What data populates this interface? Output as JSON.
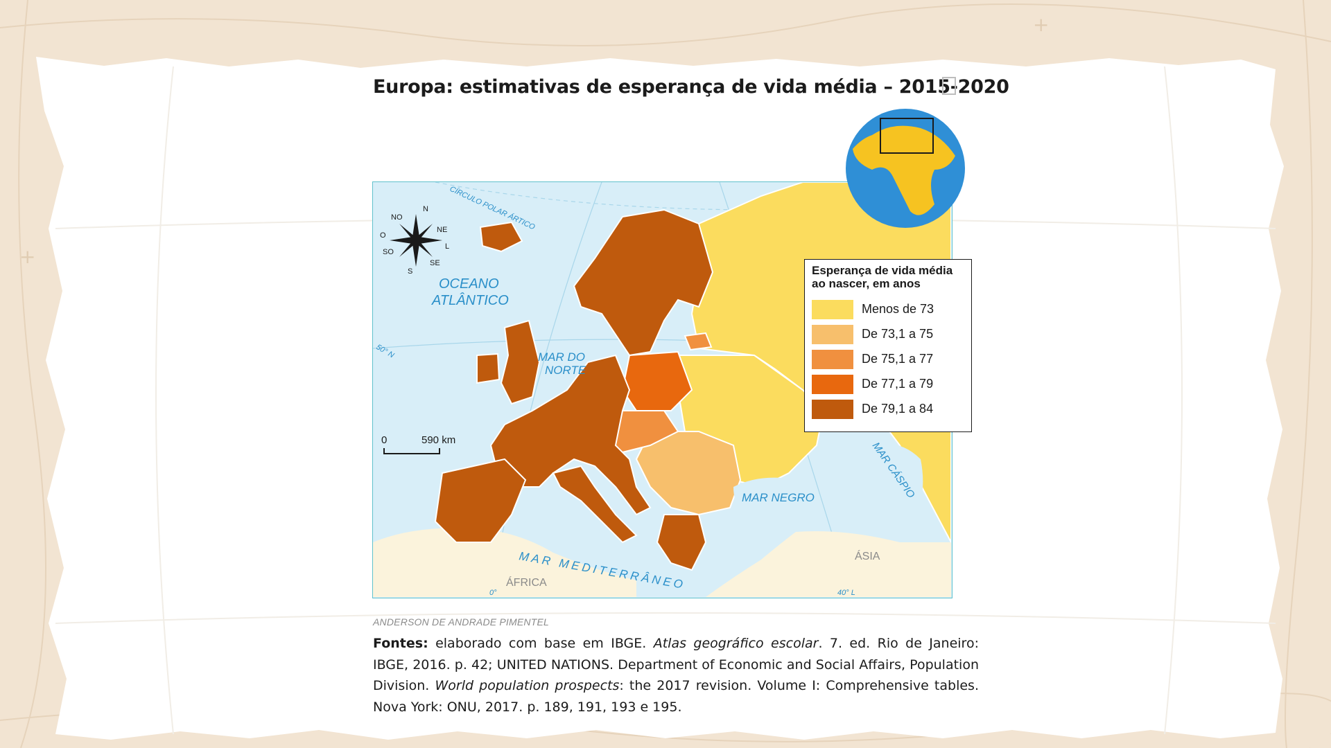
{
  "title": "Europa: estimativas de esperança de vida média – 2015-2020",
  "legend": {
    "title_line1": "Esperança de vida média",
    "title_line2": "ao nascer, em anos",
    "items": [
      {
        "label": "Menos de 73",
        "color": "#fbdc5e"
      },
      {
        "label": "De 73,1 a 75",
        "color": "#f7bf6c"
      },
      {
        "label": "De 75,1 a 77",
        "color": "#f0903f"
      },
      {
        "label": "De 77,1 a 79",
        "color": "#e8680e"
      },
      {
        "label": "De 79,1 a 84",
        "color": "#bf5a0d"
      }
    ]
  },
  "map_labels": {
    "oceano": "OCEANO",
    "atlantico": "ATLÂNTICO",
    "mar_do": "MAR DO",
    "norte": "NORTE",
    "mar_negro": "MAR NEGRO",
    "mar_caspio": "MAR CÁSPIO",
    "mar_mediterraneo": "MAR MEDITERRÂNEO",
    "africa": "ÁFRICA",
    "asia": "ÁSIA",
    "circulo_polar": "CÍRCULO POLAR ÁRTICO",
    "lat_50": "50° N",
    "lon_0": "0°",
    "lon_40": "40° L"
  },
  "compass": {
    "n": "N",
    "ne": "NE",
    "l": "L",
    "se": "SE",
    "s": "S",
    "so": "SO",
    "o": "O",
    "no": "NO"
  },
  "scale": {
    "zero": "0",
    "distance": "590 km"
  },
  "credit": "ANDERSON DE ANDRADE PIMENTEL",
  "sources": {
    "label": "Fontes:",
    "part1": " elaborado com base em IBGE. ",
    "italic1": "Atlas geográfico escolar",
    "part2": ". 7. ed. Rio de Janeiro: IBGE, 2016. p. 42; UNITED NATIONS. Department of Economic and Social Affairs, Population Division. ",
    "italic2": "World population prospects",
    "part3": ": the 2017 revision. Volume I: Comprehensive tables. Nova York: ONU, 2017. p. 189, 191, 193 e 195."
  },
  "colors": {
    "sea": "#d8eef8",
    "land_other": "#fbf3dc",
    "border": "#ffffff",
    "globe_ocean": "#2f8fd6",
    "globe_land": "#f6c321"
  }
}
